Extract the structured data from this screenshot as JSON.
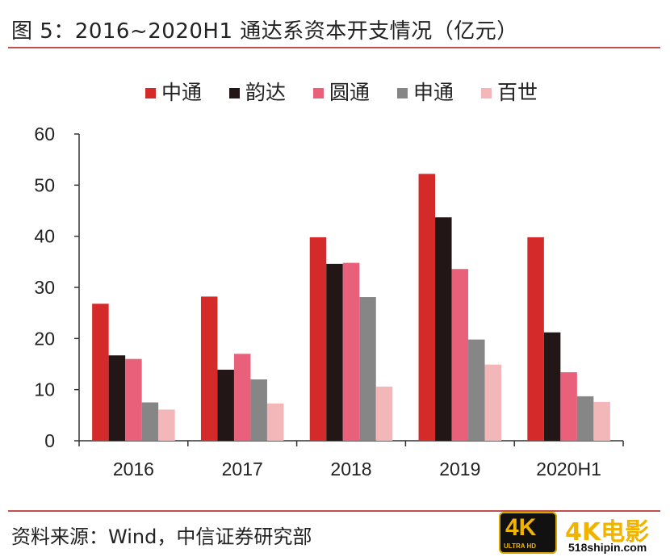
{
  "figure": {
    "title": "图 5：2016~2020H1 通达系资本开支情况（亿元）",
    "source": "资料来源：Wind，中信证券研究部"
  },
  "watermark": {
    "badge_main": "4K",
    "badge_sub": "ULTRA HD",
    "brand": "4K电影",
    "site": "518shipin.com"
  },
  "chart_data": {
    "type": "bar",
    "categories": [
      "2016",
      "2017",
      "2018",
      "2019",
      "2020H1"
    ],
    "series": [
      {
        "name": "中通",
        "color": "#d42a2a",
        "values": [
          26.8,
          28.2,
          39.8,
          52.2,
          39.8
        ]
      },
      {
        "name": "韵达",
        "color": "#231616",
        "values": [
          16.7,
          13.9,
          34.6,
          43.7,
          21.2
        ]
      },
      {
        "name": "圆通",
        "color": "#e8607a",
        "values": [
          16.0,
          17.0,
          34.8,
          33.6,
          13.4
        ]
      },
      {
        "name": "申通",
        "color": "#868686",
        "values": [
          7.5,
          12.0,
          28.1,
          19.8,
          8.7
        ]
      },
      {
        "name": "百世",
        "color": "#f3b6b9",
        "values": [
          6.1,
          7.3,
          10.6,
          14.9,
          7.6
        ]
      }
    ],
    "ylim": [
      0,
      60
    ],
    "yticks": [
      "0",
      "10",
      "20",
      "30",
      "40",
      "50",
      "60"
    ],
    "legend_position": "top-center",
    "grid": false
  }
}
